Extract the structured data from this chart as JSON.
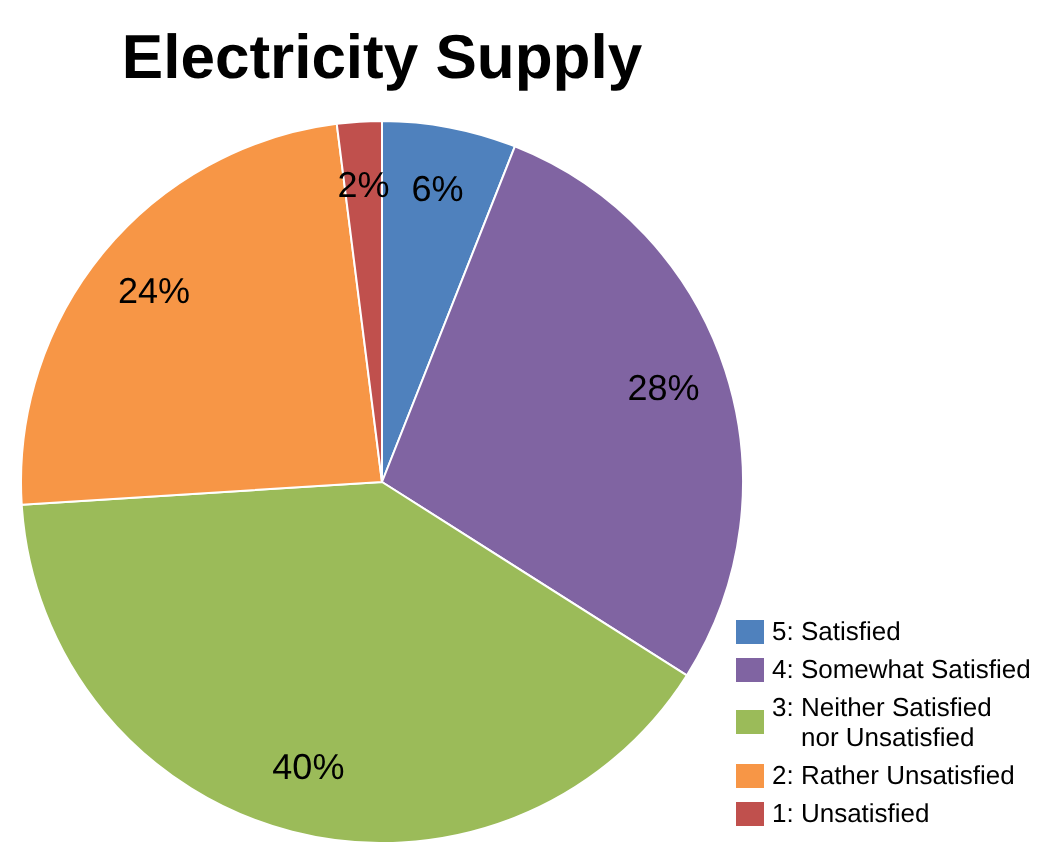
{
  "chart_data": {
    "type": "pie",
    "title": "Electricity Supply",
    "categories": [
      "5: Satisfied",
      "4: Somewhat Satisfied",
      "3: Neither Satisfied nor Unsatisfied",
      "2: Rather Unsatisfied",
      "1: Unsatisfied"
    ],
    "values": [
      6,
      28,
      40,
      24,
      2
    ],
    "colors": [
      "#4f81bd",
      "#8064a2",
      "#9bbb59",
      "#f79646",
      "#c0504d"
    ],
    "value_labels": [
      "6%",
      "28%",
      "40%",
      "24%",
      "2%"
    ],
    "legend": "bottom right"
  }
}
